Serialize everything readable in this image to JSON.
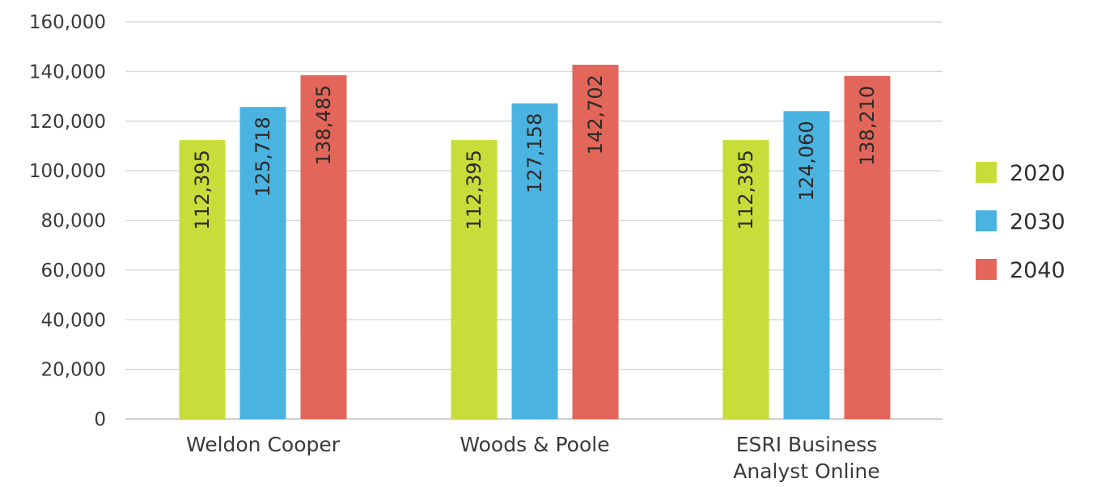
{
  "chart_data": {
    "type": "bar",
    "categories": [
      "Weldon Cooper",
      "Woods & Poole",
      "ESRI Business Analyst Online"
    ],
    "category_lines": [
      [
        "Weldon Cooper"
      ],
      [
        "Woods & Poole"
      ],
      [
        "ESRI Business",
        "Analyst Online"
      ]
    ],
    "series": [
      {
        "name": "2020",
        "color": "#c6dd3a",
        "values": [
          112395,
          112395,
          112395
        ],
        "labels": [
          "112,395",
          "112,395",
          "112,395"
        ]
      },
      {
        "name": "2030",
        "color": "#4ab3e0",
        "values": [
          125718,
          127158,
          124060
        ],
        "labels": [
          "125,718",
          "127,158",
          "124,060"
        ]
      },
      {
        "name": "2040",
        "color": "#e2665a",
        "values": [
          138485,
          142702,
          138210
        ],
        "labels": [
          "138,485",
          "142,702",
          "138,210"
        ]
      }
    ],
    "yticks": [
      "0",
      "20,000",
      "40,000",
      "60,000",
      "80,000",
      "100,000",
      "120,000",
      "140,000",
      "160,000"
    ],
    "ylim": [
      0,
      160000
    ],
    "grid": true,
    "legend_position": "right",
    "title": "",
    "xlabel": "",
    "ylabel": ""
  }
}
